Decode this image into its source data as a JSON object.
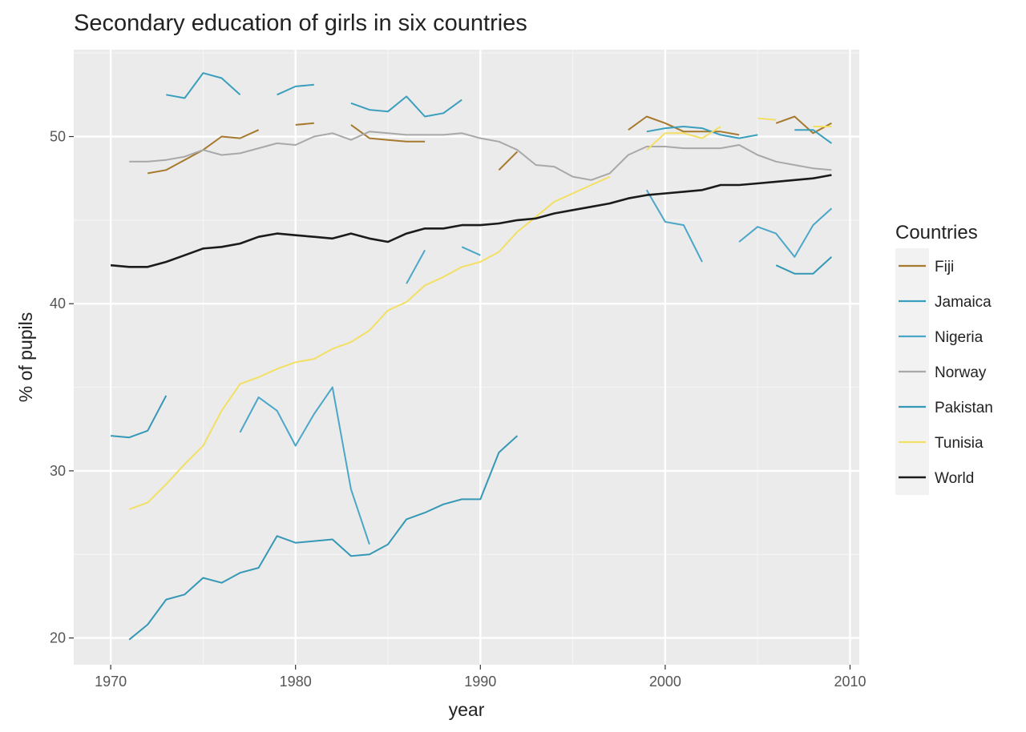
{
  "chart_data": {
    "type": "line",
    "title": "Secondary education of girls in six countries",
    "xlabel": "year",
    "ylabel": "% of pupils",
    "xlim": [
      1968,
      2010.5
    ],
    "ylim": [
      18.4,
      55.2
    ],
    "x_ticks": [
      1970,
      1980,
      1990,
      2000,
      2010
    ],
    "y_ticks": [
      20,
      30,
      40,
      50
    ],
    "grid": true,
    "legend": {
      "title": "Countries",
      "position": "right"
    },
    "series": [
      {
        "name": "Fiji",
        "color": "#a6792e",
        "points": [
          [
            1972,
            47.8
          ],
          [
            1973,
            48.0
          ],
          [
            1974,
            48.6
          ],
          [
            1975,
            49.2
          ],
          [
            1976,
            50.0
          ],
          [
            1977,
            49.9
          ],
          [
            1978,
            50.4
          ],
          null,
          [
            1980,
            50.7
          ],
          [
            1981,
            50.8
          ],
          null,
          [
            1983,
            50.7
          ],
          [
            1984,
            49.9
          ],
          [
            1985,
            49.8
          ],
          [
            1986,
            49.7
          ],
          [
            1987,
            49.7
          ],
          null,
          [
            1991,
            48.0
          ],
          [
            1992,
            49.1
          ],
          null,
          [
            1998,
            50.4
          ],
          [
            1999,
            51.2
          ],
          [
            2000,
            50.8
          ],
          [
            2001,
            50.3
          ],
          [
            2002,
            50.3
          ],
          [
            2003,
            50.3
          ],
          [
            2004,
            50.1
          ],
          null,
          [
            2006,
            50.8
          ],
          [
            2007,
            51.2
          ],
          [
            2008,
            50.2
          ],
          [
            2009,
            50.8
          ]
        ]
      },
      {
        "name": "Jamaica",
        "color": "#3a9fbd",
        "points": [
          [
            1973,
            52.5
          ],
          [
            1974,
            52.3
          ],
          [
            1975,
            53.8
          ],
          [
            1976,
            53.5
          ],
          [
            1977,
            52.5
          ],
          null,
          [
            1979,
            52.5
          ],
          [
            1980,
            53.0
          ],
          [
            1981,
            53.1
          ],
          null,
          [
            1983,
            52.0
          ],
          [
            1984,
            51.6
          ],
          [
            1985,
            51.5
          ],
          [
            1986,
            52.4
          ],
          [
            1987,
            51.2
          ],
          [
            1988,
            51.4
          ],
          [
            1989,
            52.2
          ],
          null,
          [
            1999,
            50.3
          ],
          [
            2000,
            50.5
          ],
          [
            2001,
            50.6
          ],
          [
            2002,
            50.5
          ],
          [
            2003,
            50.1
          ],
          [
            2004,
            49.9
          ],
          [
            2005,
            50.1
          ],
          null,
          [
            2007,
            50.4
          ],
          [
            2008,
            50.4
          ],
          [
            2009,
            49.6
          ]
        ]
      },
      {
        "name": "Nigeria",
        "color": "#4ba7c8",
        "points": [
          [
            1977,
            32.3
          ],
          [
            1978,
            34.4
          ],
          [
            1979,
            33.6
          ],
          [
            1980,
            31.5
          ],
          [
            1981,
            33.4
          ],
          [
            1982,
            35.0
          ],
          [
            1983,
            28.9
          ],
          [
            1984,
            25.6
          ],
          null,
          [
            1986,
            41.2
          ],
          [
            1987,
            43.2
          ],
          null,
          [
            1989,
            43.4
          ],
          [
            1990,
            42.9
          ],
          null,
          [
            1999,
            46.8
          ],
          [
            2000,
            44.9
          ],
          [
            2001,
            44.7
          ],
          [
            2002,
            42.5
          ],
          null,
          [
            2004,
            43.7
          ],
          [
            2005,
            44.6
          ],
          [
            2006,
            44.2
          ],
          [
            2007,
            42.8
          ],
          [
            2008,
            44.7
          ],
          [
            2009,
            45.7
          ]
        ]
      },
      {
        "name": "Norway",
        "color": "#a8a8a8",
        "points": [
          [
            1971,
            48.5
          ],
          [
            1972,
            48.5
          ],
          [
            1973,
            48.6
          ],
          [
            1974,
            48.8
          ],
          [
            1975,
            49.2
          ],
          [
            1976,
            48.9
          ],
          [
            1977,
            49.0
          ],
          [
            1978,
            49.3
          ],
          [
            1979,
            49.6
          ],
          [
            1980,
            49.5
          ],
          [
            1981,
            50.0
          ],
          [
            1982,
            50.2
          ],
          [
            1983,
            49.8
          ],
          [
            1984,
            50.3
          ],
          [
            1985,
            50.2
          ],
          [
            1986,
            50.1
          ],
          [
            1987,
            50.1
          ],
          [
            1988,
            50.1
          ],
          [
            1989,
            50.2
          ],
          [
            1990,
            49.9
          ],
          [
            1991,
            49.7
          ],
          [
            1992,
            49.2
          ],
          [
            1993,
            48.3
          ],
          [
            1994,
            48.2
          ],
          [
            1995,
            47.6
          ],
          [
            1996,
            47.4
          ],
          [
            1997,
            47.8
          ],
          [
            1998,
            48.9
          ],
          [
            1999,
            49.4
          ],
          [
            2000,
            49.4
          ],
          [
            2001,
            49.3
          ],
          [
            2002,
            49.3
          ],
          [
            2003,
            49.3
          ],
          [
            2004,
            49.5
          ],
          [
            2005,
            48.9
          ],
          [
            2006,
            48.5
          ],
          [
            2007,
            48.3
          ],
          [
            2008,
            48.1
          ],
          [
            2009,
            48.0
          ]
        ]
      },
      {
        "name": "Pakistan",
        "color": "#3598b6",
        "points": [
          [
            1970,
            32.1
          ],
          [
            1971,
            32.0
          ],
          [
            1972,
            32.4
          ],
          [
            1973,
            34.5
          ],
          null,
          [
            1971,
            19.9
          ],
          [
            1972,
            20.8
          ],
          [
            1973,
            22.3
          ],
          [
            1974,
            22.6
          ],
          [
            1975,
            23.6
          ],
          [
            1976,
            23.3
          ],
          [
            1977,
            23.9
          ],
          [
            1978,
            24.2
          ],
          [
            1979,
            26.1
          ],
          [
            1980,
            25.7
          ],
          [
            1981,
            25.8
          ],
          [
            1982,
            25.9
          ],
          [
            1983,
            24.9
          ],
          [
            1984,
            25.0
          ],
          [
            1985,
            25.6
          ],
          [
            1986,
            27.1
          ],
          [
            1987,
            27.5
          ],
          [
            1988,
            28.0
          ],
          [
            1989,
            28.3
          ],
          [
            1990,
            28.3
          ],
          [
            1991,
            31.1
          ],
          [
            1992,
            32.1
          ],
          null,
          [
            2006,
            42.3
          ],
          [
            2007,
            41.8
          ],
          [
            2008,
            41.8
          ],
          [
            2009,
            42.8
          ]
        ]
      },
      {
        "name": "Tunisia",
        "color": "#f3df63",
        "points": [
          [
            1971,
            27.7
          ],
          [
            1972,
            28.1
          ],
          [
            1973,
            29.2
          ],
          [
            1974,
            30.4
          ],
          [
            1975,
            31.5
          ],
          [
            1976,
            33.6
          ],
          [
            1977,
            35.2
          ],
          [
            1978,
            35.6
          ],
          [
            1979,
            36.1
          ],
          [
            1980,
            36.5
          ],
          [
            1981,
            36.7
          ],
          [
            1982,
            37.3
          ],
          [
            1983,
            37.7
          ],
          [
            1984,
            38.4
          ],
          [
            1985,
            39.6
          ],
          [
            1986,
            40.1
          ],
          [
            1987,
            41.1
          ],
          [
            1988,
            41.6
          ],
          [
            1989,
            42.2
          ],
          [
            1990,
            42.5
          ],
          [
            1991,
            43.1
          ],
          [
            1992,
            44.3
          ],
          [
            1993,
            45.2
          ],
          [
            1994,
            46.1
          ],
          [
            1995,
            46.6
          ],
          [
            1996,
            47.1
          ],
          [
            1997,
            47.6
          ],
          null,
          [
            1999,
            49.2
          ],
          [
            2000,
            50.2
          ],
          [
            2001,
            50.2
          ],
          [
            2002,
            49.9
          ],
          [
            2003,
            50.6
          ],
          null,
          [
            2005,
            51.1
          ],
          [
            2006,
            51.0
          ],
          null,
          [
            2008,
            50.6
          ],
          [
            2009,
            50.6
          ]
        ]
      },
      {
        "name": "World",
        "color": "#1b1b1b",
        "points": [
          [
            1970,
            42.3
          ],
          [
            1971,
            42.2
          ],
          [
            1972,
            42.2
          ],
          [
            1973,
            42.5
          ],
          [
            1974,
            42.9
          ],
          [
            1975,
            43.3
          ],
          [
            1976,
            43.4
          ],
          [
            1977,
            43.6
          ],
          [
            1978,
            44.0
          ],
          [
            1979,
            44.2
          ],
          [
            1980,
            44.1
          ],
          [
            1981,
            44.0
          ],
          [
            1982,
            43.9
          ],
          [
            1983,
            44.2
          ],
          [
            1984,
            43.9
          ],
          [
            1985,
            43.7
          ],
          [
            1986,
            44.2
          ],
          [
            1987,
            44.5
          ],
          [
            1988,
            44.5
          ],
          [
            1989,
            44.7
          ],
          [
            1990,
            44.7
          ],
          [
            1991,
            44.8
          ],
          [
            1992,
            45.0
          ],
          [
            1993,
            45.1
          ],
          [
            1994,
            45.4
          ],
          [
            1995,
            45.6
          ],
          [
            1996,
            45.8
          ],
          [
            1997,
            46.0
          ],
          [
            1998,
            46.3
          ],
          [
            1999,
            46.5
          ],
          [
            2000,
            46.6
          ],
          [
            2001,
            46.7
          ],
          [
            2002,
            46.8
          ],
          [
            2003,
            47.1
          ],
          [
            2004,
            47.1
          ],
          [
            2005,
            47.2
          ],
          [
            2006,
            47.3
          ],
          [
            2007,
            47.4
          ],
          [
            2008,
            47.5
          ],
          [
            2009,
            47.7
          ]
        ]
      }
    ]
  }
}
